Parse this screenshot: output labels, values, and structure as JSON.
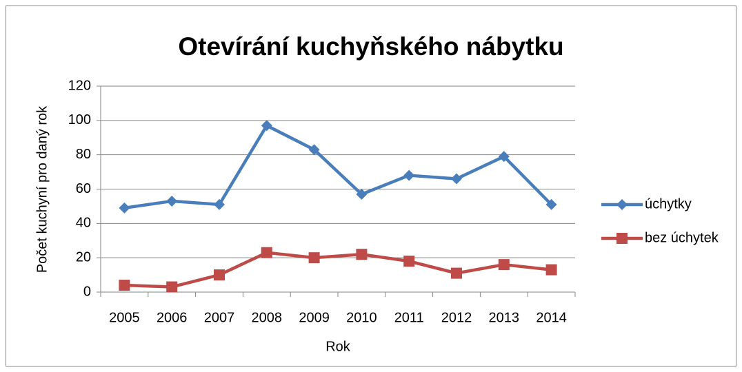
{
  "chart_data": {
    "type": "line",
    "title": "Otevírání kuchyňského nábytku",
    "x_label": "Rok",
    "y_label": "Počet  kuchyní pro daný rok",
    "categories": [
      "2005",
      "2006",
      "2007",
      "2008",
      "2009",
      "2010",
      "2011",
      "2012",
      "2013",
      "2014"
    ],
    "series": [
      {
        "name": "úchytky",
        "color": "#4a7ebb",
        "marker": "diamond",
        "values": [
          49,
          53,
          51,
          97,
          83,
          57,
          68,
          66,
          79,
          51
        ]
      },
      {
        "name": "bez úchytek",
        "color": "#be4b48",
        "marker": "square",
        "values": [
          4,
          3,
          10,
          23,
          20,
          22,
          18,
          11,
          16,
          13
        ]
      }
    ],
    "ylim": [
      0,
      120
    ],
    "yticks": [
      0,
      20,
      40,
      60,
      80,
      100,
      120
    ],
    "grid": true,
    "legend": "right"
  }
}
